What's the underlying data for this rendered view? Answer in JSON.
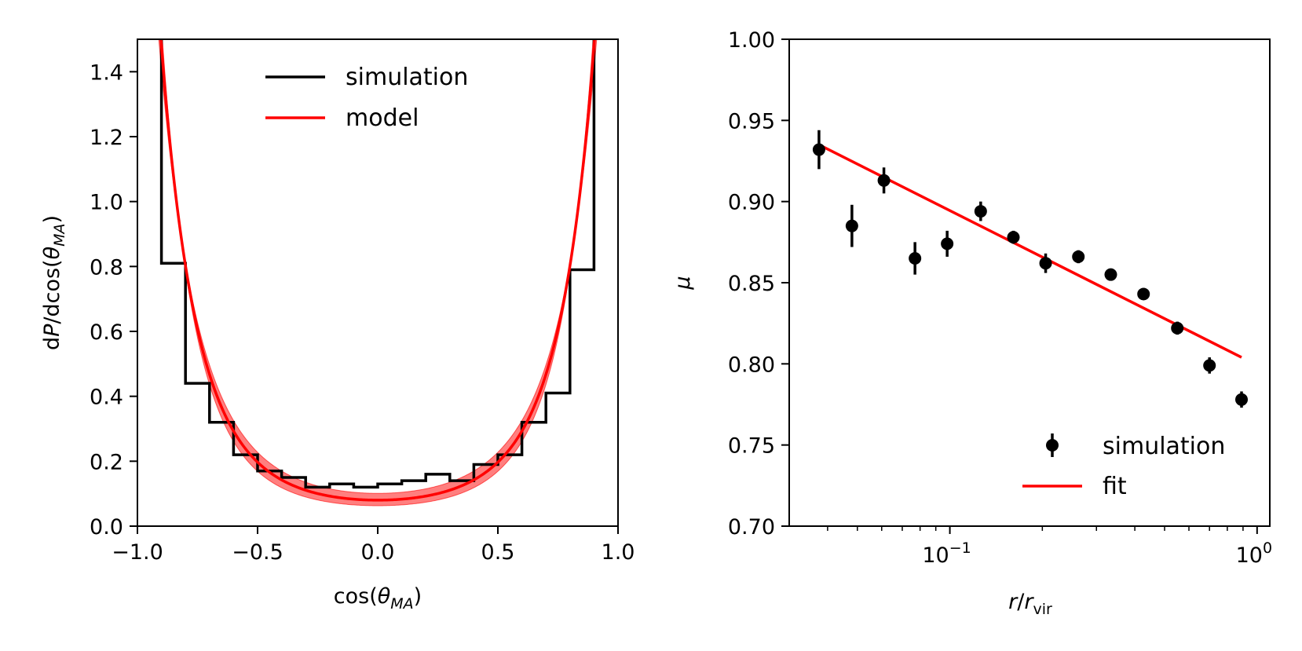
{
  "chart_data": [
    {
      "type": "line",
      "panel": "left",
      "title": "",
      "xlabel": "cos(θ_MA)",
      "xlabel_main": "cos(",
      "xlabel_sym": "θ",
      "xlabel_sub": "MA",
      "xlabel_close": ")",
      "ylabel": "dP/dcos(θ_MA)",
      "ylabel_d": "d",
      "ylabel_p": "P",
      "ylabel_mid": "/dcos(",
      "ylabel_sym": "θ",
      "ylabel_sub": "MA",
      "ylabel_close": ")",
      "xlim": [
        -1.0,
        1.0
      ],
      "ylim": [
        0.0,
        1.5
      ],
      "xticks": [
        -1.0,
        -0.5,
        0.0,
        0.5,
        1.0
      ],
      "xtick_labels": [
        "−1.0",
        "−0.5",
        "0.0",
        "0.5",
        "1.0"
      ],
      "yticks": [
        0.0,
        0.2,
        0.4,
        0.6,
        0.8,
        1.0,
        1.2,
        1.4
      ],
      "ytick_labels": [
        "0.0",
        "0.2",
        "0.4",
        "0.6",
        "0.8",
        "1.0",
        "1.2",
        "1.4"
      ],
      "grid": false,
      "legend_position": "top-center",
      "legend": [
        "simulation",
        "model"
      ],
      "series": [
        {
          "name": "simulation",
          "style": "step",
          "color": "#000000",
          "bin_edges": [
            -0.9,
            -0.8,
            -0.7,
            -0.6,
            -0.5,
            -0.4,
            -0.3,
            -0.2,
            -0.1,
            0.0,
            0.1,
            0.2,
            0.3,
            0.4,
            0.5,
            0.6,
            0.7,
            0.8,
            0.9
          ],
          "values": [
            0.81,
            0.44,
            0.32,
            0.22,
            0.17,
            0.15,
            0.12,
            0.13,
            0.12,
            0.13,
            0.14,
            0.16,
            0.14,
            0.19,
            0.22,
            0.32,
            0.41,
            0.79
          ]
        },
        {
          "name": "model",
          "style": "line",
          "color": "#ff0000",
          "function": "bingham",
          "kappa": 3.6,
          "peak_offset": -0.1,
          "band_kappa": [
            3.25,
            3.95
          ],
          "band_color": "#ff0000"
        }
      ]
    },
    {
      "type": "scatter",
      "panel": "right",
      "title": "",
      "xlabel": "r/r_vir",
      "xlabel_r": "r",
      "xlabel_slash": "/",
      "xlabel_r2": "r",
      "xlabel_sub": "vir",
      "ylabel": "μ",
      "xscale": "log",
      "xlim": [
        0.03,
        1.1
      ],
      "ylim": [
        0.7,
        1.0
      ],
      "xticks": [
        0.1,
        1.0
      ],
      "xtick_base": "10",
      "xtick_exps": [
        "−1",
        "0"
      ],
      "yticks": [
        0.7,
        0.75,
        0.8,
        0.85,
        0.9,
        0.95,
        1.0
      ],
      "ytick_labels": [
        "0.70",
        "0.75",
        "0.80",
        "0.85",
        "0.90",
        "0.95",
        "1.00"
      ],
      "grid": false,
      "legend_position": "bottom-right",
      "legend": [
        "simulation",
        "fit"
      ],
      "series": [
        {
          "name": "simulation",
          "style": "errorbar",
          "color": "#000000",
          "x": [
            0.0375,
            0.048,
            0.061,
            0.077,
            0.098,
            0.126,
            0.161,
            0.205,
            0.262,
            0.334,
            0.427,
            0.55,
            0.7,
            0.89
          ],
          "y": [
            0.932,
            0.885,
            0.913,
            0.865,
            0.874,
            0.894,
            0.878,
            0.862,
            0.866,
            0.855,
            0.843,
            0.822,
            0.799,
            0.778
          ],
          "yerr": [
            0.012,
            0.013,
            0.008,
            0.01,
            0.008,
            0.006,
            0.004,
            0.006,
            0.004,
            0.003,
            0.003,
            0.004,
            0.005,
            0.005
          ]
        },
        {
          "name": "fit",
          "style": "line",
          "color": "#ff0000",
          "x": [
            0.0375,
            0.89
          ],
          "y": [
            0.935,
            0.804
          ]
        }
      ]
    }
  ]
}
